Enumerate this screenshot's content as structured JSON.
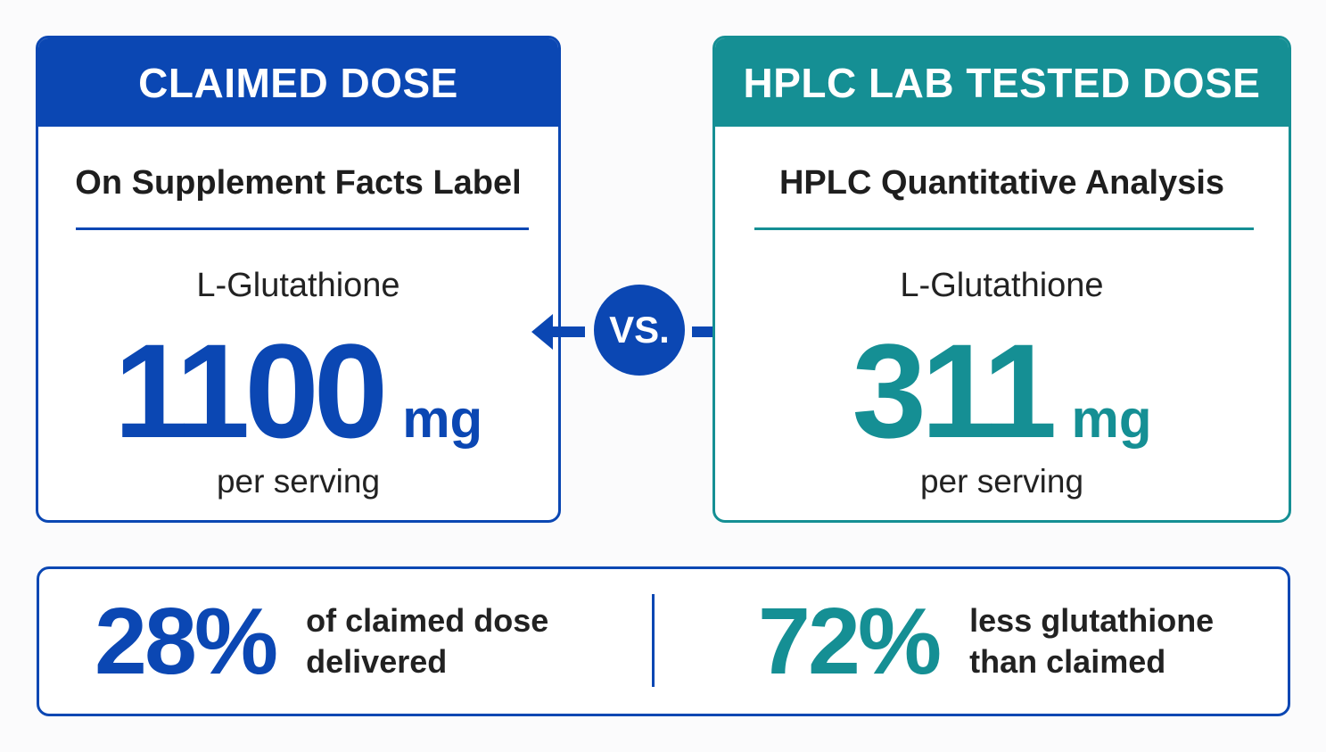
{
  "claimed": {
    "header": "CLAIMED DOSE",
    "subtitle": "On Supplement Facts Label",
    "compound": "L-Glutathione",
    "dose": "1100",
    "unit": "mg",
    "per": "per serving"
  },
  "tested": {
    "header": "HPLC LAB TESTED DOSE",
    "subtitle": "HPLC Quantitative Analysis",
    "compound": "L-Glutathione",
    "dose": "311",
    "unit": "mg",
    "per": "per serving"
  },
  "vs_label": "VS.",
  "summary": {
    "stat1": {
      "value": "28%",
      "line1": "of claimed dose",
      "line2": "delivered"
    },
    "stat2": {
      "value": "72%",
      "line1": "less glutathione",
      "line2": "than claimed"
    }
  },
  "colors": {
    "blue": "#0b47b3",
    "teal": "#158f94",
    "background": "#fbfbfc"
  }
}
